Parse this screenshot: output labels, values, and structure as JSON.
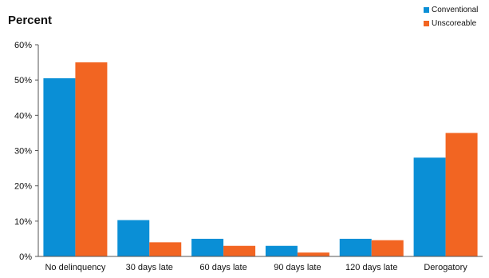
{
  "chart_data": {
    "type": "bar",
    "ylabel": "Percent",
    "categories": [
      "No delinquency",
      "30 days late",
      "60 days late",
      "90 days late",
      "120 days late",
      "Derogatory"
    ],
    "series": [
      {
        "name": "Conventional",
        "color": "#0a8fd6",
        "values": [
          50.5,
          10.3,
          5.0,
          3.0,
          5.0,
          28.0
        ]
      },
      {
        "name": "Unscoreable",
        "color": "#f26522",
        "values": [
          55.0,
          4.0,
          3.0,
          1.1,
          4.6,
          35.0
        ]
      }
    ],
    "ylim": [
      0,
      60
    ],
    "yticks": [
      0,
      10,
      20,
      30,
      40,
      50,
      60
    ],
    "ytick_labels": [
      "0%",
      "10%",
      "20%",
      "30%",
      "40%",
      "50%",
      "60%"
    ],
    "grid": false,
    "legend_position": "top-right"
  }
}
